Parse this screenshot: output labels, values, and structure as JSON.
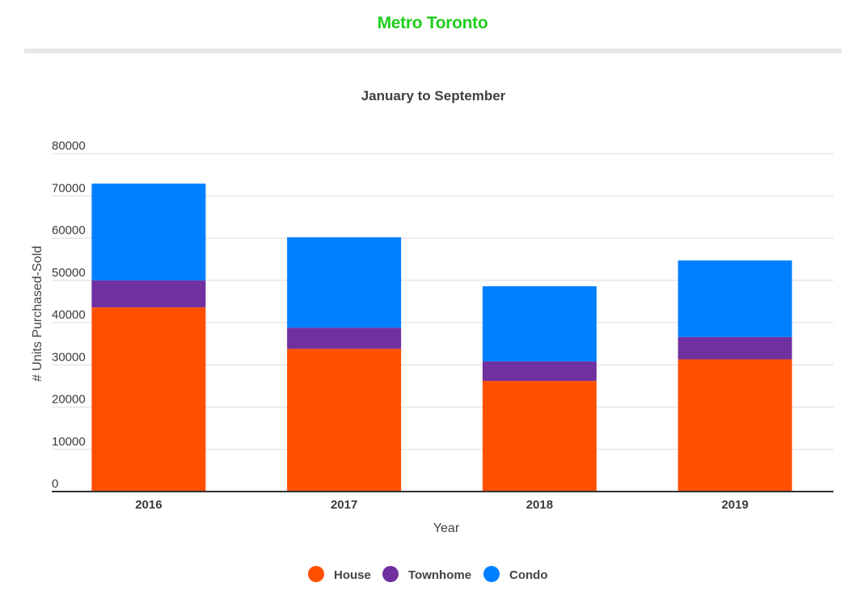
{
  "header": {
    "title": "Metro Toronto"
  },
  "chart_data": {
    "type": "bar",
    "stacked": true,
    "title": "January to September",
    "xlabel": "Year",
    "ylabel": "# Units Purchased-Sold",
    "ylim": [
      0,
      80000
    ],
    "yticks": [
      "0",
      "10000",
      "20000",
      "30000",
      "40000",
      "50000",
      "60000",
      "70000",
      "80000"
    ],
    "categories": [
      "2016",
      "2017",
      "2018",
      "2019"
    ],
    "series": [
      {
        "name": "House",
        "color": "#ff5000",
        "values": [
          43600,
          33800,
          26200,
          31300
        ]
      },
      {
        "name": "Townhome",
        "color": "#7030a0",
        "values": [
          6400,
          5000,
          4600,
          5300
        ]
      },
      {
        "name": "Condo",
        "color": "#0080ff",
        "values": [
          22900,
          21400,
          17800,
          18100
        ]
      }
    ],
    "grid": true,
    "legend_position": "bottom"
  }
}
